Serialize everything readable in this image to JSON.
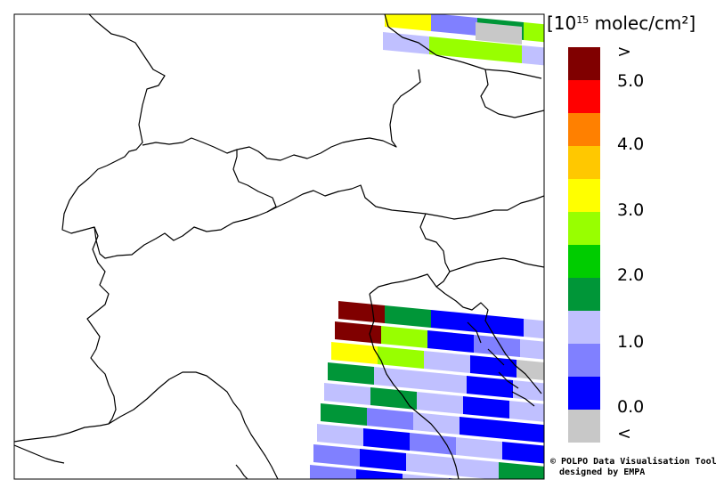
{
  "legend": {
    "title_prefix": "[10",
    "title_exponent": "15",
    "title_suffix": " molec/cm²]",
    "labels": [
      ">",
      "5.0",
      "4.0",
      "3.0",
      "2.0",
      "1.0",
      "0.0",
      "<"
    ],
    "colors": [
      "#800000",
      "#ff0000",
      "#ff8000",
      "#ffc800",
      "#ffff00",
      "#98ff00",
      "#00cc00",
      "#009638",
      "#c0c0ff",
      "#8080ff",
      "#0000ff",
      "#c8c8c8"
    ]
  },
  "credit": {
    "line1": "© POLPO Data Visualisation Tool",
    "line2": "designed by EMPA"
  }
}
